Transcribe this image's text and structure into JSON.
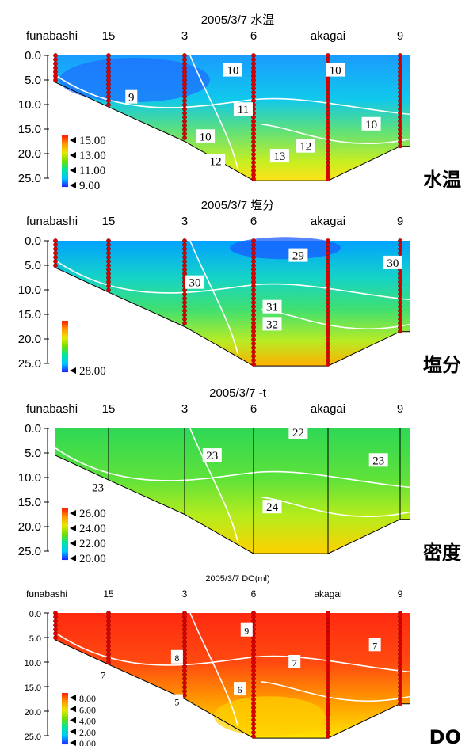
{
  "colors": {
    "scale": [
      "#1f1fff",
      "#00c8ff",
      "#00e6a0",
      "#6ee000",
      "#e8e800",
      "#ff9a00",
      "#ff1a00"
    ],
    "station_marker": "#e00000",
    "contour": "#ffffff"
  },
  "chart_data": [
    {
      "type": "heatmap",
      "title": "2005/3/7 水温",
      "side_label": "水温",
      "stations": [
        "funabashi",
        "15",
        "3",
        "6",
        "akagai",
        "9"
      ],
      "depth_ticks": [
        "0.0",
        "5.0",
        "10.0",
        "15.0",
        "20.0",
        "25.0"
      ],
      "ylim": [
        0,
        25
      ],
      "colorbar": {
        "labels": [
          "15.00",
          "13.00",
          "11.00",
          "9.00"
        ],
        "range": [
          9,
          15
        ]
      },
      "contours": [
        {
          "label": "9",
          "x": 2.3,
          "depth": 8.5
        },
        {
          "label": "10",
          "x": 3.7,
          "depth": 3
        },
        {
          "label": "10",
          "x": 3.3,
          "depth": 16.5
        },
        {
          "label": "10",
          "x": 5.1,
          "depth": 3
        },
        {
          "label": "10",
          "x": 5.6,
          "depth": 14
        },
        {
          "label": "11",
          "x": 3.85,
          "depth": 11
        },
        {
          "label": "12",
          "x": 3.45,
          "depth": 21.5
        },
        {
          "label": "12",
          "x": 4.7,
          "depth": 18.5
        },
        {
          "label": "13",
          "x": 4.35,
          "depth": 20.5
        }
      ]
    },
    {
      "type": "heatmap",
      "title": "2005/3/7 塩分",
      "side_label": "塩分",
      "stations": [
        "funabashi",
        "15",
        "3",
        "6",
        "akagai",
        "9"
      ],
      "depth_ticks": [
        "0.0",
        "5.0",
        "10.0",
        "15.0",
        "20.0",
        "25.0"
      ],
      "ylim": [
        0,
        25
      ],
      "colorbar": {
        "labels": [
          "28.00"
        ],
        "range": [
          28,
          34
        ]
      },
      "contours": [
        {
          "label": "29",
          "x": 4.6,
          "depth": 3
        },
        {
          "label": "30",
          "x": 5.9,
          "depth": 4.5
        },
        {
          "label": "30",
          "x": 3.15,
          "depth": 8.5
        },
        {
          "label": "31",
          "x": 4.25,
          "depth": 13.5
        },
        {
          "label": "32",
          "x": 4.25,
          "depth": 17
        }
      ]
    },
    {
      "type": "heatmap",
      "title": "2005/3/7      -t",
      "side_label": "密度",
      "stations": [
        "funabashi",
        "15",
        "3",
        "6",
        "akagai",
        "9"
      ],
      "depth_ticks": [
        "0.0",
        "5.0",
        "10.0",
        "15.0",
        "20.0",
        "25.0"
      ],
      "ylim": [
        0,
        25
      ],
      "colorbar": {
        "labels": [
          "26.00",
          "24.00",
          "22.00",
          "20.00"
        ],
        "range": [
          20,
          26
        ]
      },
      "contours": [
        {
          "label": "22",
          "x": 4.6,
          "depth": 0.8
        },
        {
          "label": "23",
          "x": 3.4,
          "depth": 5.5
        },
        {
          "label": "23",
          "x": 5.7,
          "depth": 6.5
        },
        {
          "label": "23",
          "x": 1.8,
          "depth": 12
        },
        {
          "label": "24",
          "x": 4.25,
          "depth": 16
        }
      ]
    },
    {
      "type": "heatmap",
      "title": "2005/3/7 DO(ml)",
      "side_label": "DO",
      "stations": [
        "funabashi",
        "15",
        "3",
        "6",
        "akagai",
        "9"
      ],
      "depth_ticks": [
        "0.0",
        "5.0",
        "10.0",
        "15.0",
        "20.0",
        "25.0"
      ],
      "ylim": [
        0,
        25
      ],
      "colorbar": {
        "labels": [
          "8.00",
          "6.00",
          "4.00",
          "2.00",
          "0.00"
        ],
        "range": [
          0,
          8
        ]
      },
      "contours": [
        {
          "label": "9",
          "x": 3.9,
          "depth": 3.5
        },
        {
          "label": "8",
          "x": 2.9,
          "depth": 9
        },
        {
          "label": "7",
          "x": 4.55,
          "depth": 10
        },
        {
          "label": "7",
          "x": 5.65,
          "depth": 6.5
        },
        {
          "label": "7",
          "x": 1.9,
          "depth": 12.5
        },
        {
          "label": "6",
          "x": 3.8,
          "depth": 15.5
        },
        {
          "label": "5",
          "x": 2.9,
          "depth": 18
        }
      ]
    }
  ]
}
